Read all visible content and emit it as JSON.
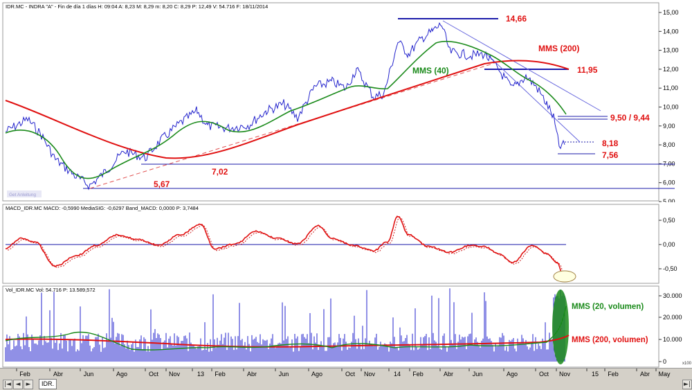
{
  "price_panel": {
    "header": "IDR.MC - INDRA \"A\" - Fin de día 1 días  H: 09:04  A: 8,23  M: 8,29  m: 8,20  C: 8,29  P: 12,49  V: 54.716  F: 18/11/2014",
    "watermark": "Get Anleitung",
    "y_ticks": [
      "15,00",
      "14,00",
      "13,00",
      "12,00",
      "11,00",
      "10,00",
      "9,00",
      "8,00",
      "7,00",
      "6,00",
      "5,00"
    ],
    "annotations": {
      "high": "14,66",
      "mms200": "MMS (200)",
      "resistance": "11,95",
      "mms40": "MMS (40)",
      "level_950": "9,50 / 9,44",
      "last": "8,18",
      "low_recent": "7,56",
      "support": "7,02",
      "low_2012": "5,67"
    },
    "colors": {
      "price": "#2222cc",
      "mms40": "#1a8a1a",
      "mms200": "#e01010",
      "lines": "#1a1aaa",
      "labels": "#e01010"
    }
  },
  "macd_panel": {
    "header": "MACD_IDR.MC  MACD: -0,5990  MediaSIG: -0,6297  Band_MACD: 0,0000  P: 3,7484",
    "y_ticks": [
      "0,50",
      "0,00",
      "-0,50"
    ]
  },
  "volume_panel": {
    "header": "Vol_IDR.MC  Vol: 54.716  P: 13.589,572",
    "y_ticks": [
      "30.000",
      "20.000",
      "10.000",
      "0"
    ],
    "unit": "x100",
    "annotations": {
      "mms20": "MMS (20, volumen)",
      "mms200": "MMS (200, volumen)"
    }
  },
  "x_axis": {
    "labels": [
      "Feb",
      "Abr",
      "Jun",
      "Ago",
      "Oct",
      "Nov",
      "13",
      "Feb",
      "Abr",
      "Jun",
      "Ago",
      "Oct",
      "Nov",
      "14",
      "Feb",
      "Abr",
      "Jun",
      "Ago",
      "Oct",
      "Nov",
      "15",
      "Feb",
      "Abr",
      "May"
    ]
  },
  "tab": {
    "label": "IDR."
  },
  "controls": {
    "prev": "◄",
    "next": "►",
    "first": "|◄",
    "last": "►|"
  }
}
